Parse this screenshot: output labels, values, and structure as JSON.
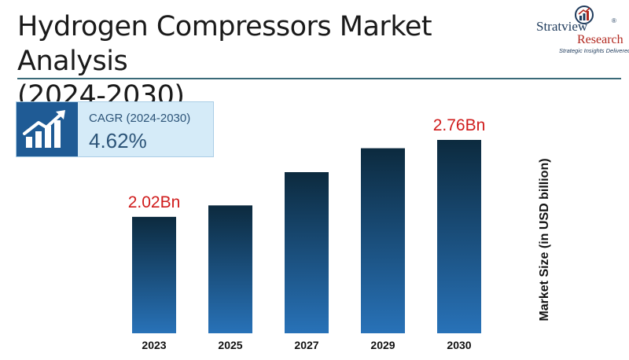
{
  "header": {
    "title_line1": "Hydrogen Compressors Market Analysis",
    "title_line2": "(2024-2030)"
  },
  "logo": {
    "brand": "Stratview",
    "registered": "®",
    "research": "Research",
    "tagline": "Strategic Insights Delivered",
    "icon": "chart-growth-icon"
  },
  "cagr": {
    "label": "CAGR (2024-2030)",
    "value": "4.62%",
    "icon": "growth-chart-icon"
  },
  "colors": {
    "bar_top": "#0c2a3e",
    "bar_bottom": "#2872b8",
    "value_label": "#d01c1c",
    "divider": "#3a6a78",
    "cagr_bg": "#d5ebf8",
    "cagr_icon_bg": "#1f5b95"
  },
  "chart_data": {
    "type": "bar",
    "categories": [
      "2023",
      "2025",
      "2027",
      "2029",
      "2030"
    ],
    "values": [
      2.02,
      2.13,
      2.45,
      2.68,
      2.76
    ],
    "data_labels": [
      "2.02Bn",
      "",
      "",
      "",
      "2.76Bn"
    ],
    "title": "Hydrogen Compressors Market Analysis (2024-2030)",
    "xlabel": "",
    "ylabel": "Market Size (in USD billion)",
    "grid": false,
    "legend": "none"
  }
}
